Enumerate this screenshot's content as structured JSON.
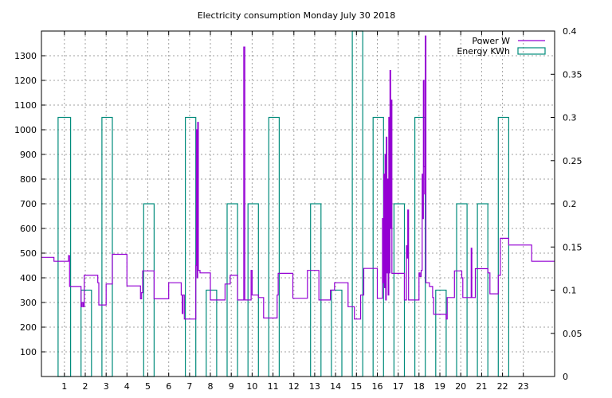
{
  "chart_data": {
    "type": "line",
    "title": "Electricity consumption Monday July 30 2018",
    "xlabel": "",
    "ylabel": "",
    "y2label": "",
    "xlim": [
      -0.1,
      24.5
    ],
    "ylim": [
      0,
      1400
    ],
    "y2lim": [
      0,
      0.4
    ],
    "x_ticks": [
      1,
      2,
      3,
      4,
      5,
      6,
      7,
      8,
      9,
      10,
      11,
      12,
      13,
      14,
      15,
      16,
      17,
      18,
      19,
      20,
      21,
      22,
      23
    ],
    "y_ticks": [
      100,
      200,
      300,
      400,
      500,
      600,
      700,
      800,
      900,
      1000,
      1100,
      1200,
      1300
    ],
    "y2_ticks": [
      0,
      0.05,
      0.1,
      0.15,
      0.2,
      0.25,
      0.3,
      0.35,
      0.4
    ],
    "y2_tick_labels": [
      "0",
      "0.05",
      "0.1",
      "0.15",
      "0.2",
      "0.25",
      "0.3",
      "0.35",
      "0.4"
    ],
    "grid": true,
    "legend_position": "top-right",
    "series": [
      {
        "name": "Power W",
        "axis": "left",
        "color": "#9400d3",
        "style": "line",
        "points": [
          [
            -0.1,
            483
          ],
          [
            0.5,
            483
          ],
          [
            0.5,
            467
          ],
          [
            1.2,
            467
          ],
          [
            1.2,
            490
          ],
          [
            1.25,
            490
          ],
          [
            1.25,
            365
          ],
          [
            1.8,
            365
          ],
          [
            1.8,
            283
          ],
          [
            1.85,
            283
          ],
          [
            1.85,
            300
          ],
          [
            1.9,
            300
          ],
          [
            1.9,
            283
          ],
          [
            1.95,
            283
          ],
          [
            1.95,
            410
          ],
          [
            2.6,
            410
          ],
          [
            2.6,
            380
          ],
          [
            2.65,
            380
          ],
          [
            2.65,
            290
          ],
          [
            3.0,
            290
          ],
          [
            3.0,
            375
          ],
          [
            3.3,
            375
          ],
          [
            3.3,
            495
          ],
          [
            4.0,
            495
          ],
          [
            4.0,
            367
          ],
          [
            4.65,
            367
          ],
          [
            4.65,
            315
          ],
          [
            4.7,
            315
          ],
          [
            4.7,
            340
          ],
          [
            4.75,
            340
          ],
          [
            4.75,
            428
          ],
          [
            5.3,
            428
          ],
          [
            5.3,
            315
          ],
          [
            6.0,
            315
          ],
          [
            6.0,
            380
          ],
          [
            6.6,
            380
          ],
          [
            6.6,
            330
          ],
          [
            6.65,
            330
          ],
          [
            6.65,
            255
          ],
          [
            6.68,
            255
          ],
          [
            6.68,
            330
          ],
          [
            6.75,
            330
          ],
          [
            6.75,
            233
          ],
          [
            7.3,
            233
          ],
          [
            7.3,
            450
          ],
          [
            7.33,
            450
          ],
          [
            7.33,
            1000
          ],
          [
            7.36,
            1000
          ],
          [
            7.36,
            400
          ],
          [
            7.39,
            400
          ],
          [
            7.39,
            1030
          ],
          [
            7.42,
            1030
          ],
          [
            7.42,
            430
          ],
          [
            7.5,
            430
          ],
          [
            7.5,
            420
          ],
          [
            8.0,
            420
          ],
          [
            8.0,
            310
          ],
          [
            8.7,
            310
          ],
          [
            8.7,
            375
          ],
          [
            8.95,
            375
          ],
          [
            8.95,
            410
          ],
          [
            9.3,
            410
          ],
          [
            9.3,
            310
          ],
          [
            9.6,
            310
          ],
          [
            9.6,
            1335
          ],
          [
            9.65,
            1335
          ],
          [
            9.65,
            310
          ],
          [
            9.95,
            310
          ],
          [
            9.95,
            430
          ],
          [
            10.0,
            430
          ],
          [
            10.0,
            330
          ],
          [
            10.3,
            330
          ],
          [
            10.3,
            320
          ],
          [
            10.55,
            320
          ],
          [
            10.55,
            237
          ],
          [
            11.2,
            237
          ],
          [
            11.2,
            330
          ],
          [
            11.25,
            330
          ],
          [
            11.25,
            418
          ],
          [
            11.95,
            418
          ],
          [
            11.95,
            317
          ],
          [
            12.65,
            317
          ],
          [
            12.65,
            430
          ],
          [
            13.2,
            430
          ],
          [
            13.2,
            310
          ],
          [
            13.75,
            310
          ],
          [
            13.75,
            350
          ],
          [
            13.95,
            350
          ],
          [
            13.95,
            380
          ],
          [
            14.6,
            380
          ],
          [
            14.6,
            283
          ],
          [
            14.9,
            283
          ],
          [
            14.9,
            233
          ],
          [
            15.2,
            233
          ],
          [
            15.2,
            330
          ],
          [
            15.35,
            330
          ],
          [
            15.35,
            438
          ],
          [
            16.0,
            438
          ],
          [
            16.0,
            317
          ],
          [
            16.25,
            317
          ],
          [
            16.25,
            640
          ],
          [
            16.28,
            640
          ],
          [
            16.28,
            380
          ],
          [
            16.31,
            380
          ],
          [
            16.31,
            820
          ],
          [
            16.34,
            820
          ],
          [
            16.34,
            360
          ],
          [
            16.37,
            360
          ],
          [
            16.37,
            900
          ],
          [
            16.4,
            900
          ],
          [
            16.4,
            310
          ],
          [
            16.43,
            310
          ],
          [
            16.43,
            970
          ],
          [
            16.46,
            970
          ],
          [
            16.46,
            420
          ],
          [
            16.49,
            420
          ],
          [
            16.49,
            800
          ],
          [
            16.52,
            800
          ],
          [
            16.52,
            330
          ],
          [
            16.55,
            330
          ],
          [
            16.55,
            1050
          ],
          [
            16.58,
            1050
          ],
          [
            16.58,
            420
          ],
          [
            16.61,
            420
          ],
          [
            16.61,
            1240
          ],
          [
            16.64,
            1240
          ],
          [
            16.64,
            600
          ],
          [
            16.67,
            600
          ],
          [
            16.67,
            1120
          ],
          [
            16.7,
            1120
          ],
          [
            16.7,
            418
          ],
          [
            17.3,
            418
          ],
          [
            17.3,
            310
          ],
          [
            17.4,
            310
          ],
          [
            17.4,
            530
          ],
          [
            17.43,
            530
          ],
          [
            17.43,
            480
          ],
          [
            17.46,
            480
          ],
          [
            17.46,
            675
          ],
          [
            17.5,
            675
          ],
          [
            17.5,
            310
          ],
          [
            18.0,
            310
          ],
          [
            18.0,
            420
          ],
          [
            18.05,
            420
          ],
          [
            18.05,
            405
          ],
          [
            18.1,
            405
          ],
          [
            18.1,
            430
          ],
          [
            18.15,
            430
          ],
          [
            18.15,
            820
          ],
          [
            18.18,
            820
          ],
          [
            18.18,
            640
          ],
          [
            18.21,
            640
          ],
          [
            18.21,
            1200
          ],
          [
            18.24,
            1200
          ],
          [
            18.24,
            850
          ],
          [
            18.27,
            850
          ],
          [
            18.27,
            740
          ],
          [
            18.3,
            740
          ],
          [
            18.3,
            1380
          ],
          [
            18.33,
            1380
          ],
          [
            18.33,
            380
          ],
          [
            18.5,
            380
          ],
          [
            18.5,
            365
          ],
          [
            18.65,
            365
          ],
          [
            18.65,
            320
          ],
          [
            18.7,
            320
          ],
          [
            18.7,
            252
          ],
          [
            19.3,
            252
          ],
          [
            19.3,
            233
          ],
          [
            19.35,
            233
          ],
          [
            19.35,
            320
          ],
          [
            19.7,
            320
          ],
          [
            19.7,
            428
          ],
          [
            20.05,
            428
          ],
          [
            20.05,
            400
          ],
          [
            20.1,
            400
          ],
          [
            20.1,
            320
          ],
          [
            20.5,
            320
          ],
          [
            20.5,
            520
          ],
          [
            20.53,
            520
          ],
          [
            20.53,
            320
          ],
          [
            20.7,
            320
          ],
          [
            20.7,
            437
          ],
          [
            21.3,
            437
          ],
          [
            21.3,
            420
          ],
          [
            21.4,
            420
          ],
          [
            21.4,
            335
          ],
          [
            21.8,
            335
          ],
          [
            21.8,
            410
          ],
          [
            21.9,
            410
          ],
          [
            21.9,
            560
          ],
          [
            22.3,
            560
          ],
          [
            22.3,
            533
          ],
          [
            23.4,
            533
          ],
          [
            23.4,
            467
          ],
          [
            24.5,
            467
          ]
        ]
      },
      {
        "name": "Energy KWh",
        "axis": "right",
        "color": "#008b7b",
        "style": "bars",
        "bars": [
          [
            0.7,
            1.3,
            0.3
          ],
          [
            1.8,
            2.3,
            0.1
          ],
          [
            2.8,
            3.3,
            0.3
          ],
          [
            4.8,
            5.3,
            0.2
          ],
          [
            6.8,
            7.3,
            0.3
          ],
          [
            7.8,
            8.3,
            0.1
          ],
          [
            8.8,
            9.3,
            0.2
          ],
          [
            9.8,
            10.3,
            0.2
          ],
          [
            10.8,
            11.3,
            0.3
          ],
          [
            12.8,
            13.3,
            0.2
          ],
          [
            13.8,
            14.3,
            0.1
          ],
          [
            14.8,
            15.3,
            0.4
          ],
          [
            15.8,
            16.3,
            0.3
          ],
          [
            16.8,
            17.3,
            0.2
          ],
          [
            17.8,
            18.3,
            0.3
          ],
          [
            18.8,
            19.3,
            0.1
          ],
          [
            19.8,
            20.3,
            0.2
          ],
          [
            20.8,
            21.3,
            0.2
          ],
          [
            21.8,
            22.3,
            0.3
          ]
        ]
      }
    ]
  }
}
